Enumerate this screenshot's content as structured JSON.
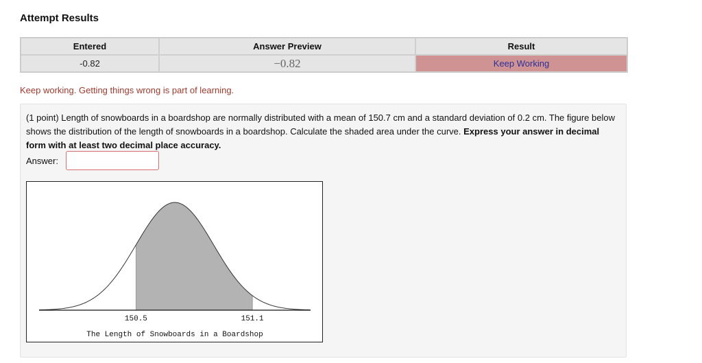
{
  "page": {
    "title": "Attempt Results"
  },
  "results_table": {
    "headers": {
      "entered": "Entered",
      "preview": "Answer Preview",
      "result": "Result"
    },
    "row": {
      "entered": "-0.82",
      "preview": "−0.82",
      "result": "Keep Working"
    },
    "colors": {
      "result_bg": "#cf9393",
      "result_text": "#2c2e9a"
    }
  },
  "feedback": {
    "message": "Keep working. Getting things wrong is part of learning."
  },
  "problem": {
    "text_intro": "(1 point) Length of snowboards in a boardshop are normally distributed with a mean of 150.7 cm and a standard deviation of 0.2 cm. The figure below shows the distribution of the length of snowboards in a boardshop. Calculate the shaded area under the curve. ",
    "text_bold": "Express your answer in decimal form with at least two decimal place accuracy.",
    "answer_label": "Answer:",
    "answer_value": ""
  },
  "figure": {
    "left_label": "150.5",
    "right_label": "151.1",
    "caption": "The Length of Snowboards in a Boardshop",
    "mean": 150.7,
    "sd": 0.2,
    "shade_from": 150.5,
    "shade_to": 151.1,
    "shade_color": "#b3b3b3"
  }
}
